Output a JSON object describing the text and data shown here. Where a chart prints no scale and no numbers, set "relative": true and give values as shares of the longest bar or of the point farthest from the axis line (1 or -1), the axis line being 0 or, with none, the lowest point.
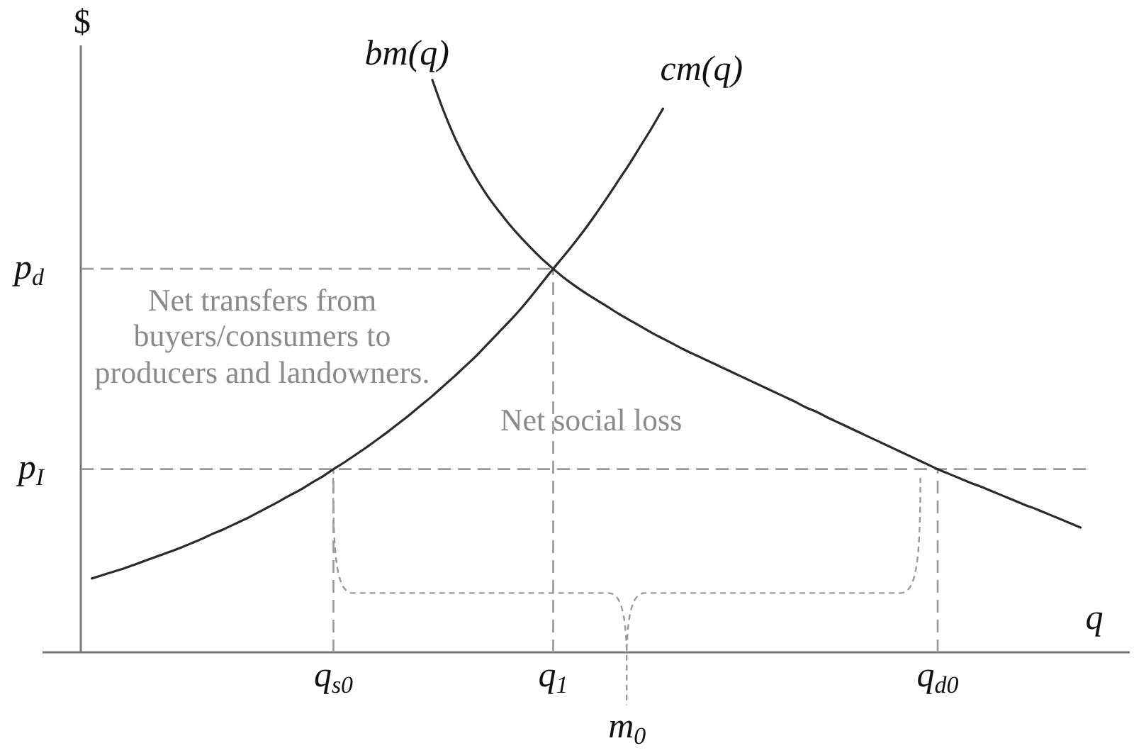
{
  "chart_data": {
    "type": "line",
    "relative": true,
    "xlabel": "q",
    "ylabel": "$",
    "categories": [
      null,
      null,
      null,
      null,
      null,
      null,
      null,
      null,
      null,
      null,
      null,
      null,
      null,
      null,
      null,
      null,
      null,
      null,
      null,
      null,
      null,
      null,
      null,
      "q$_{s0}$",
      null,
      null,
      null,
      null,
      null,
      null,
      null,
      null,
      null,
      null,
      null,
      null,
      null,
      null,
      null,
      null,
      null,
      null,
      null,
      "q$_{1}$",
      null,
      null,
      null,
      null,
      null,
      null,
      null,
      null,
      null,
      null,
      null,
      null,
      null,
      null,
      null,
      null,
      null,
      null,
      null,
      null,
      null,
      null,
      null,
      null,
      null,
      null,
      null,
      null,
      null,
      null,
      null,
      null,
      null,
      null,
      "q$_{d0}$",
      null,
      null,
      null,
      null,
      null,
      null,
      null,
      null,
      null,
      null,
      null,
      null,
      null,
      null
    ],
    "series": [
      {
        "name": "bm(q)",
        "color": "#2b2b2b",
        "values": [
          null,
          null,
          null,
          null,
          null,
          null,
          null,
          null,
          null,
          null,
          null,
          null,
          null,
          null,
          null,
          null,
          null,
          null,
          null,
          null,
          null,
          null,
          null,
          null,
          null,
          null,
          null,
          null,
          null,
          null,
          null,
          null,
          1.0,
          0.947,
          0.901,
          0.862,
          0.828,
          0.798,
          0.772,
          0.748,
          0.726,
          0.706,
          0.687,
          0.67,
          0.654,
          0.64,
          0.627,
          0.615,
          0.603,
          0.591,
          0.58,
          0.569,
          0.558,
          0.548,
          0.538,
          0.528,
          0.519,
          0.51,
          0.501,
          0.492,
          0.483,
          0.474,
          0.465,
          0.456,
          0.447,
          0.438,
          0.428,
          0.42,
          0.41,
          0.401,
          0.392,
          0.383,
          0.374,
          0.365,
          0.356,
          0.347,
          0.338,
          0.329,
          0.32,
          0.312,
          0.304,
          0.296,
          0.289,
          0.281,
          0.273,
          0.265,
          0.257,
          0.25,
          0.242,
          0.234,
          0.226,
          0.218,
          null
        ]
      },
      {
        "name": "cm(q)",
        "color": "#2b2b2b",
        "values": [
          null,
          0.129,
          0.135,
          0.141,
          0.147,
          0.154,
          0.161,
          0.168,
          0.175,
          0.182,
          0.19,
          0.198,
          0.207,
          0.215,
          0.224,
          0.233,
          0.243,
          0.253,
          0.263,
          0.274,
          0.284,
          0.296,
          0.307,
          0.32,
          0.332,
          0.345,
          0.358,
          0.372,
          0.386,
          0.401,
          0.416,
          0.432,
          0.448,
          0.465,
          0.482,
          0.5,
          0.518,
          0.538,
          0.558,
          0.578,
          0.599,
          0.622,
          0.646,
          0.67,
          0.693,
          0.717,
          0.742,
          0.769,
          0.797,
          0.826,
          0.855,
          0.886,
          0.917,
          0.95,
          null,
          null,
          null,
          null,
          null,
          null,
          null,
          null,
          null,
          null,
          null,
          null,
          null,
          null,
          null,
          null,
          null,
          null,
          null,
          null,
          null,
          null,
          null,
          null,
          null,
          null,
          null,
          null,
          null,
          null,
          null,
          null,
          null,
          null,
          null,
          null,
          null,
          null,
          null
        ]
      }
    ],
    "ref_lines": [
      {
        "axis": "y",
        "value": 0.67,
        "label": "p$_{d}$",
        "color": "#999999",
        "line_style": "dashed"
      },
      {
        "axis": "y",
        "value": 0.32,
        "label": "p$_{I}$",
        "color": "#999999",
        "line_style": "dashed"
      },
      {
        "axis": "x",
        "value": "q$_{s0}$",
        "color": "#999999",
        "line_style": "dashed"
      },
      {
        "axis": "x",
        "value": "q$_{1}$",
        "color": "#999999",
        "line_style": "dashed"
      },
      {
        "axis": "x",
        "value": "q$_{d0}$",
        "color": "#999999",
        "line_style": "dashed"
      }
    ],
    "annotations": [
      "Net transfers from buyers/consumers to producers and landowners.",
      "Net social loss",
      "m$_{0}$"
    ]
  }
}
